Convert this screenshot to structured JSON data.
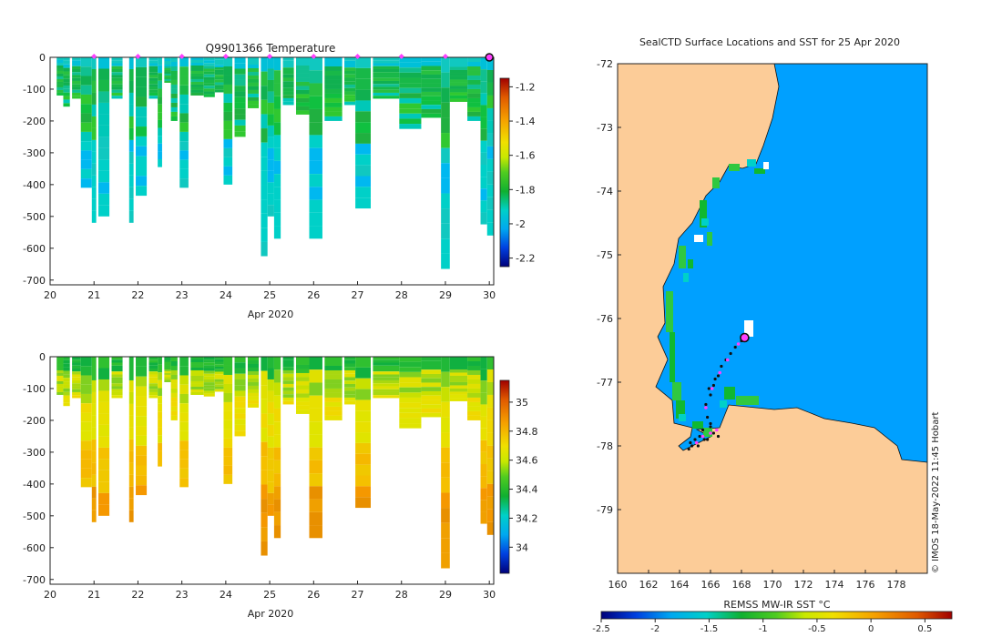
{
  "chart_data": [
    {
      "type": "heatmap",
      "title": "Q9901366  Temperature",
      "xlabel": "Apr 2020",
      "ylabel": "",
      "xlim": [
        20,
        30.1
      ],
      "ylim": [
        -715,
        0
      ],
      "xticks": [
        "20",
        "21",
        "22",
        "23",
        "24",
        "25",
        "26",
        "27",
        "28",
        "29",
        "30"
      ],
      "yticks": [
        "0",
        "-100",
        "-200",
        "-300",
        "-400",
        "-500",
        "-600",
        "-700"
      ],
      "colorbar": {
        "min": -2.25,
        "max": -1.15,
        "ticks": [
          "-1.2",
          "-1.4",
          "-1.6",
          "-1.8",
          "-2",
          "-2.2"
        ]
      },
      "profile_markers_x": [
        21,
        22,
        23,
        24,
        25,
        26,
        27,
        28,
        29
      ],
      "current_profile_x": 30,
      "profiles": [
        {
          "x": 20.15,
          "w": 0.15,
          "depth": 120
        },
        {
          "x": 20.3,
          "w": 0.15,
          "depth": 155
        },
        {
          "x": 20.5,
          "w": 0.2,
          "depth": 130
        },
        {
          "x": 20.7,
          "w": 0.25,
          "depth": 410
        },
        {
          "x": 20.95,
          "w": 0.1,
          "depth": 520
        },
        {
          "x": 21.1,
          "w": 0.25,
          "depth": 500
        },
        {
          "x": 21.4,
          "w": 0.25,
          "depth": 130
        },
        {
          "x": 21.8,
          "w": 0.1,
          "depth": 520
        },
        {
          "x": 21.95,
          "w": 0.25,
          "depth": 435
        },
        {
          "x": 22.25,
          "w": 0.2,
          "depth": 130
        },
        {
          "x": 22.45,
          "w": 0.1,
          "depth": 345
        },
        {
          "x": 22.6,
          "w": 0.15,
          "depth": 80
        },
        {
          "x": 22.75,
          "w": 0.15,
          "depth": 200
        },
        {
          "x": 22.95,
          "w": 0.2,
          "depth": 410
        },
        {
          "x": 23.2,
          "w": 0.3,
          "depth": 120
        },
        {
          "x": 23.5,
          "w": 0.25,
          "depth": 125
        },
        {
          "x": 23.75,
          "w": 0.2,
          "depth": 110
        },
        {
          "x": 23.95,
          "w": 0.2,
          "depth": 400
        },
        {
          "x": 24.2,
          "w": 0.25,
          "depth": 250
        },
        {
          "x": 24.5,
          "w": 0.25,
          "depth": 160
        },
        {
          "x": 24.8,
          "w": 0.15,
          "depth": 625
        },
        {
          "x": 24.95,
          "w": 0.15,
          "depth": 500
        },
        {
          "x": 25.1,
          "w": 0.15,
          "depth": 570
        },
        {
          "x": 25.3,
          "w": 0.25,
          "depth": 150
        },
        {
          "x": 25.6,
          "w": 0.3,
          "depth": 180
        },
        {
          "x": 25.9,
          "w": 0.3,
          "depth": 570
        },
        {
          "x": 26.25,
          "w": 0.4,
          "depth": 200
        },
        {
          "x": 26.7,
          "w": 0.25,
          "depth": 150
        },
        {
          "x": 26.95,
          "w": 0.35,
          "depth": 475
        },
        {
          "x": 27.35,
          "w": 0.6,
          "depth": 130
        },
        {
          "x": 27.95,
          "w": 0.5,
          "depth": 225
        },
        {
          "x": 28.45,
          "w": 0.45,
          "depth": 190
        },
        {
          "x": 28.9,
          "w": 0.2,
          "depth": 665
        },
        {
          "x": 29.1,
          "w": 0.4,
          "depth": 140
        },
        {
          "x": 29.5,
          "w": 0.3,
          "depth": 200
        },
        {
          "x": 29.8,
          "w": 0.15,
          "depth": 525
        },
        {
          "x": 29.95,
          "w": 0.15,
          "depth": 560
        }
      ]
    },
    {
      "type": "heatmap",
      "title": "",
      "xlabel": "Apr 2020",
      "ylabel": "",
      "xlim": [
        20,
        30.1
      ],
      "ylim": [
        -715,
        0
      ],
      "xticks": [
        "20",
        "21",
        "22",
        "23",
        "24",
        "25",
        "26",
        "27",
        "28",
        "29",
        "30"
      ],
      "yticks": [
        "0",
        "-100",
        "-200",
        "-300",
        "-400",
        "-500",
        "-600",
        "-700"
      ],
      "colorbar": {
        "min": 33.82,
        "max": 35.15,
        "ticks": [
          "35",
          "34.8",
          "34.6",
          "34.4",
          "34.2",
          "34"
        ]
      }
    },
    {
      "type": "heatmap",
      "title": "SealCTD Surface Locations and SST for 25 Apr 2020",
      "xlabel": "",
      "ylabel": "",
      "xlim": [
        160,
        180
      ],
      "ylim": [
        -80,
        -72
      ],
      "xticks": [
        "160",
        "162",
        "164",
        "166",
        "168",
        "170",
        "172",
        "174",
        "176",
        "178"
      ],
      "yticks": [
        "-72",
        "-73",
        "-74",
        "-75",
        "-76",
        "-77",
        "-78",
        "-79"
      ],
      "colorbar_label": "REMSS MW-IR SST °C",
      "colorbar": {
        "min": -2.5,
        "max": 0.75,
        "ticks": [
          "-2.5",
          "-2",
          "-1.5",
          "-1",
          "-0.5",
          "0",
          "0.5"
        ]
      },
      "current_location": {
        "lon": 168.2,
        "lat": -76.3
      },
      "track_points": [
        [
          168.0,
          -76.35
        ],
        [
          167.6,
          -76.45
        ],
        [
          167.3,
          -76.55
        ],
        [
          167.0,
          -76.65
        ],
        [
          166.7,
          -76.75
        ],
        [
          166.5,
          -76.9
        ],
        [
          166.2,
          -77.05
        ],
        [
          166.0,
          -77.2
        ],
        [
          165.7,
          -77.35
        ],
        [
          165.8,
          -77.55
        ],
        [
          166.0,
          -77.7
        ],
        [
          165.5,
          -77.75
        ],
        [
          165.3,
          -77.85
        ],
        [
          165.0,
          -77.9
        ],
        [
          164.8,
          -78.0
        ],
        [
          164.6,
          -78.05
        ],
        [
          165.8,
          -77.9
        ],
        [
          166.2,
          -77.8
        ],
        [
          166.5,
          -77.85
        ],
        [
          166.0,
          -77.65
        ],
        [
          165.6,
          -77.9
        ],
        [
          164.7,
          -77.95
        ],
        [
          165.2,
          -78.0
        ],
        [
          166.3,
          -76.95
        ],
        [
          165.9,
          -77.1
        ]
      ],
      "track_magenta": [
        [
          167.8,
          -76.4
        ],
        [
          167.1,
          -76.65
        ],
        [
          166.6,
          -76.85
        ],
        [
          166.1,
          -77.1
        ],
        [
          165.7,
          -77.4
        ],
        [
          166.0,
          -77.8
        ],
        [
          165.5,
          -77.85
        ],
        [
          165.1,
          -77.95
        ],
        [
          166.4,
          -77.75
        ]
      ]
    }
  ],
  "credit": "© IMOS 18-May-2022 11:45 Hobart",
  "colors": {
    "ocean": "#00a0ff",
    "land": "#fccc98",
    "marker": "#ff40ff",
    "axis": "#222222"
  }
}
